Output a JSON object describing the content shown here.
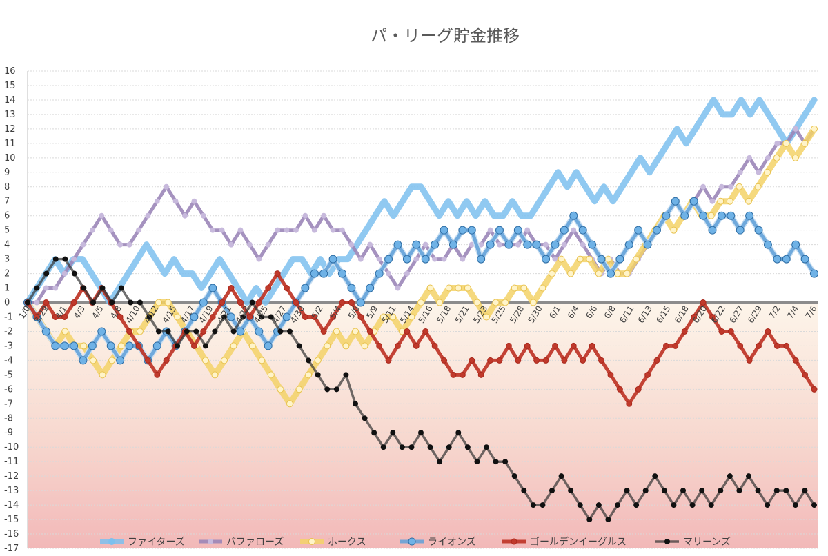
{
  "chart_data": {
    "type": "line",
    "title": "パ・リーグ貯金推移",
    "xlabel": "",
    "ylabel": "",
    "ylim": [
      -17,
      16
    ],
    "yticks": [
      16,
      15,
      14,
      13,
      12,
      11,
      10,
      9,
      8,
      7,
      6,
      5,
      4,
      3,
      2,
      1,
      0,
      -1,
      -2,
      -3,
      -4,
      -5,
      -6,
      -7,
      -8,
      -9,
      -10,
      -11,
      -12,
      -13,
      -14,
      -15,
      -16,
      -17
    ],
    "grid": true,
    "legend_position": "bottom",
    "x_tick_labels": [
      "1/0",
      "3/29",
      "4/1",
      "4/3",
      "4/5",
      "4/8",
      "4/10",
      "4/12",
      "4/15",
      "4/17",
      "4/19",
      "4/21",
      "4/23",
      "4/25",
      "4/27",
      "4/30",
      "5/2",
      "5/4",
      "5/6",
      "5/9",
      "5/11",
      "5/14",
      "5/16",
      "5/18",
      "5/21",
      "5/23",
      "5/25",
      "5/28",
      "5/30",
      "6/1",
      "6/4",
      "6/6",
      "6/8",
      "6/11",
      "6/13",
      "6/15",
      "6/18",
      "6/20",
      "6/22",
      "6/27",
      "6/29",
      "7/2",
      "7/4",
      "7/6"
    ],
    "series": [
      {
        "name": "ファイターズ",
        "color": "#7cc0ee",
        "values": [
          0,
          1,
          2,
          3,
          2,
          3,
          3,
          2,
          1,
          0,
          1,
          2,
          3,
          4,
          3,
          2,
          3,
          2,
          2,
          1,
          2,
          3,
          2,
          1,
          0,
          1,
          0,
          1,
          2,
          3,
          3,
          2,
          3,
          2,
          3,
          3,
          4,
          5,
          6,
          7,
          6,
          7,
          8,
          8,
          7,
          6,
          7,
          6,
          7,
          6,
          7,
          6,
          6,
          7,
          6,
          6,
          7,
          8,
          9,
          8,
          9,
          8,
          7,
          8,
          7,
          8,
          9,
          10,
          9,
          10,
          11,
          12,
          11,
          12,
          13,
          14,
          13,
          13,
          14,
          13,
          14,
          13,
          12,
          11,
          12,
          13,
          14
        ]
      },
      {
        "name": "バファローズ",
        "color": "#9b86b8",
        "values": [
          0,
          0,
          1,
          1,
          2,
          3,
          4,
          5,
          6,
          5,
          4,
          4,
          5,
          6,
          7,
          8,
          7,
          6,
          7,
          6,
          5,
          5,
          4,
          5,
          4,
          3,
          4,
          5,
          5,
          5,
          6,
          5,
          6,
          5,
          5,
          4,
          3,
          4,
          3,
          2,
          1,
          2,
          3,
          4,
          3,
          3,
          4,
          3,
          4,
          4,
          5,
          4,
          4,
          4,
          5,
          4,
          4,
          3,
          4,
          5,
          4,
          3,
          2,
          3,
          2,
          2,
          3,
          4,
          5,
          6,
          7,
          6,
          7,
          8,
          7,
          8,
          8,
          9,
          10,
          9,
          10,
          11,
          11,
          12,
          11,
          12
        ]
      },
      {
        "name": "ホークス",
        "color": "#f3d267",
        "values": [
          0,
          -1,
          -2,
          -3,
          -2,
          -3,
          -3,
          -4,
          -5,
          -4,
          -3,
          -2,
          -2,
          -1,
          0,
          0,
          -1,
          -2,
          -3,
          -4,
          -5,
          -4,
          -3,
          -2,
          -3,
          -4,
          -5,
          -6,
          -7,
          -6,
          -5,
          -4,
          -3,
          -2,
          -3,
          -2,
          -3,
          -2,
          -1,
          -1,
          -2,
          -1,
          0,
          1,
          0,
          1,
          1,
          1,
          0,
          -1,
          0,
          0,
          1,
          1,
          0,
          1,
          2,
          3,
          2,
          3,
          3,
          2,
          3,
          2,
          2,
          3,
          4,
          5,
          6,
          5,
          6,
          7,
          6,
          6,
          7,
          7,
          8,
          7,
          8,
          9,
          10,
          11,
          10,
          11,
          12
        ]
      },
      {
        "name": "ライオンズ",
        "color": "#5fa0d8",
        "values": [
          0,
          -1,
          -2,
          -3,
          -3,
          -3,
          -4,
          -3,
          -2,
          -3,
          -4,
          -3,
          -3,
          -4,
          -3,
          -2,
          -3,
          -2,
          -1,
          0,
          1,
          0,
          -1,
          -2,
          -1,
          -2,
          -3,
          -2,
          -1,
          0,
          1,
          2,
          2,
          3,
          2,
          1,
          0,
          1,
          2,
          3,
          4,
          3,
          4,
          3,
          4,
          5,
          4,
          5,
          5,
          3,
          4,
          5,
          4,
          5,
          4,
          4,
          3,
          4,
          5,
          6,
          5,
          4,
          3,
          2,
          3,
          4,
          5,
          4,
          5,
          6,
          7,
          6,
          7,
          6,
          5,
          6,
          6,
          5,
          6,
          5,
          4,
          3,
          3,
          4,
          3,
          2
        ]
      },
      {
        "name": "ゴールデンイーグルス",
        "color": "#c0392b",
        "values": [
          0,
          -1,
          0,
          -1,
          -1,
          0,
          1,
          0,
          1,
          0,
          -1,
          -2,
          -3,
          -4,
          -5,
          -4,
          -3,
          -2,
          -3,
          -2,
          -1,
          0,
          1,
          0,
          -1,
          0,
          1,
          2,
          1,
          0,
          -1,
          -1,
          -2,
          -1,
          0,
          0,
          -1,
          -2,
          -3,
          -4,
          -3,
          -2,
          -3,
          -2,
          -3,
          -4,
          -5,
          -5,
          -4,
          -5,
          -4,
          -4,
          -3,
          -4,
          -3,
          -4,
          -4,
          -3,
          -4,
          -3,
          -4,
          -3,
          -4,
          -5,
          -6,
          -7,
          -6,
          -5,
          -4,
          -3,
          -3,
          -2,
          -1,
          0,
          -1,
          -2,
          -2,
          -3,
          -4,
          -3,
          -2,
          -3,
          -3,
          -4,
          -5,
          -6
        ]
      },
      {
        "name": "マリーンズ",
        "color": "#2b2b2b",
        "values": [
          0,
          1,
          2,
          3,
          3,
          2,
          1,
          0,
          1,
          0,
          1,
          0,
          0,
          -1,
          -2,
          -2,
          -3,
          -2,
          -2,
          -3,
          -2,
          -1,
          -2,
          -1,
          0,
          -1,
          -1,
          -2,
          -2,
          -3,
          -4,
          -5,
          -6,
          -6,
          -5,
          -7,
          -8,
          -9,
          -10,
          -9,
          -10,
          -10,
          -9,
          -10,
          -11,
          -10,
          -9,
          -10,
          -11,
          -10,
          -11,
          -11,
          -12,
          -13,
          -14,
          -14,
          -13,
          -12,
          -13,
          -14,
          -15,
          -14,
          -15,
          -14,
          -13,
          -14,
          -13,
          -12,
          -13,
          -14,
          -13,
          -14,
          -13,
          -14,
          -13,
          -12,
          -13,
          -12,
          -13,
          -14,
          -13,
          -13,
          -14,
          -13,
          -14
        ]
      }
    ]
  }
}
